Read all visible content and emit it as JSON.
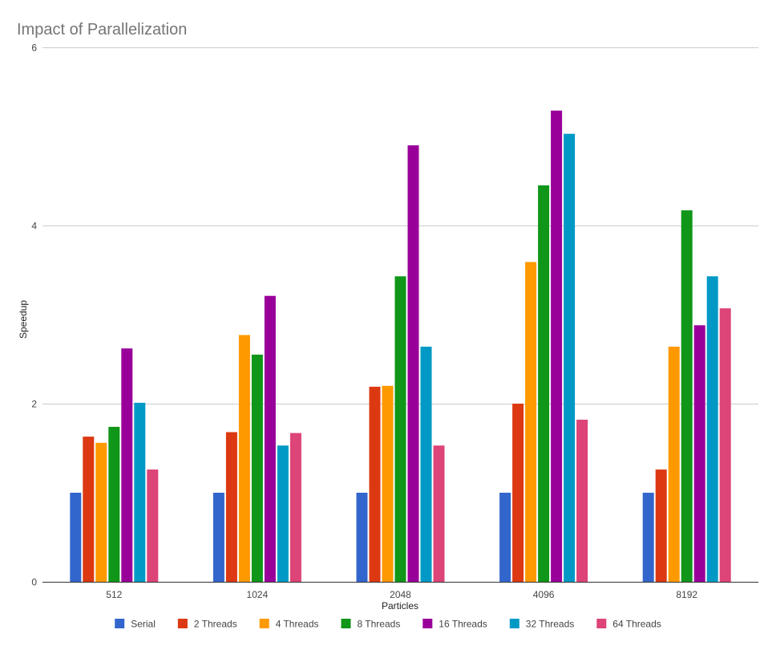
{
  "chart_data": {
    "type": "bar",
    "title": "Impact of Parallelization",
    "xlabel": "Particles",
    "ylabel": "Speedup",
    "ylim": [
      0,
      6
    ],
    "yticks": [
      "0",
      "2",
      "4",
      "6"
    ],
    "grid": true,
    "legend_position": "bottom",
    "categories": [
      "512",
      "1024",
      "2048",
      "4096",
      "8192"
    ],
    "series": [
      {
        "name": "Serial",
        "color": "#3366cc",
        "values": [
          1.0,
          1.0,
          1.0,
          1.0,
          1.0
        ]
      },
      {
        "name": "2 Threads",
        "color": "#dc3912",
        "values": [
          1.63,
          1.68,
          2.19,
          2.0,
          1.26
        ]
      },
      {
        "name": "4 Threads",
        "color": "#ff9900",
        "values": [
          1.56,
          2.77,
          2.2,
          3.59,
          2.64
        ]
      },
      {
        "name": "8 Threads",
        "color": "#109618",
        "values": [
          1.74,
          2.55,
          3.43,
          4.45,
          4.17
        ]
      },
      {
        "name": "16 Threads",
        "color": "#990099",
        "values": [
          2.62,
          3.21,
          4.9,
          5.29,
          2.88
        ]
      },
      {
        "name": "32 Threads",
        "color": "#0099c6",
        "values": [
          2.01,
          1.53,
          2.64,
          5.03,
          3.43
        ]
      },
      {
        "name": "64 Threads",
        "color": "#dd4477",
        "values": [
          1.26,
          1.67,
          1.53,
          1.82,
          3.07
        ]
      }
    ]
  }
}
